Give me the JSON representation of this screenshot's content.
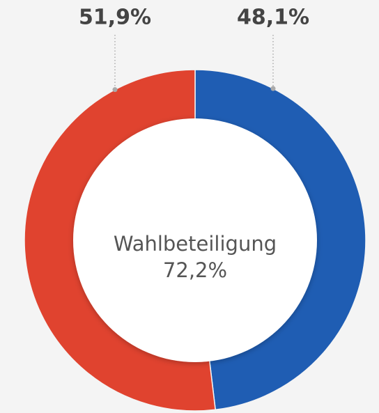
{
  "chart_data": {
    "type": "donut",
    "values": [
      48.1,
      51.9
    ],
    "value_labels": [
      "48,1%",
      "51,9%"
    ],
    "colors": [
      "#1f5db3",
      "#e0432f"
    ],
    "annotations": [
      "Wahlbeteiligung",
      "72,2%"
    ]
  }
}
